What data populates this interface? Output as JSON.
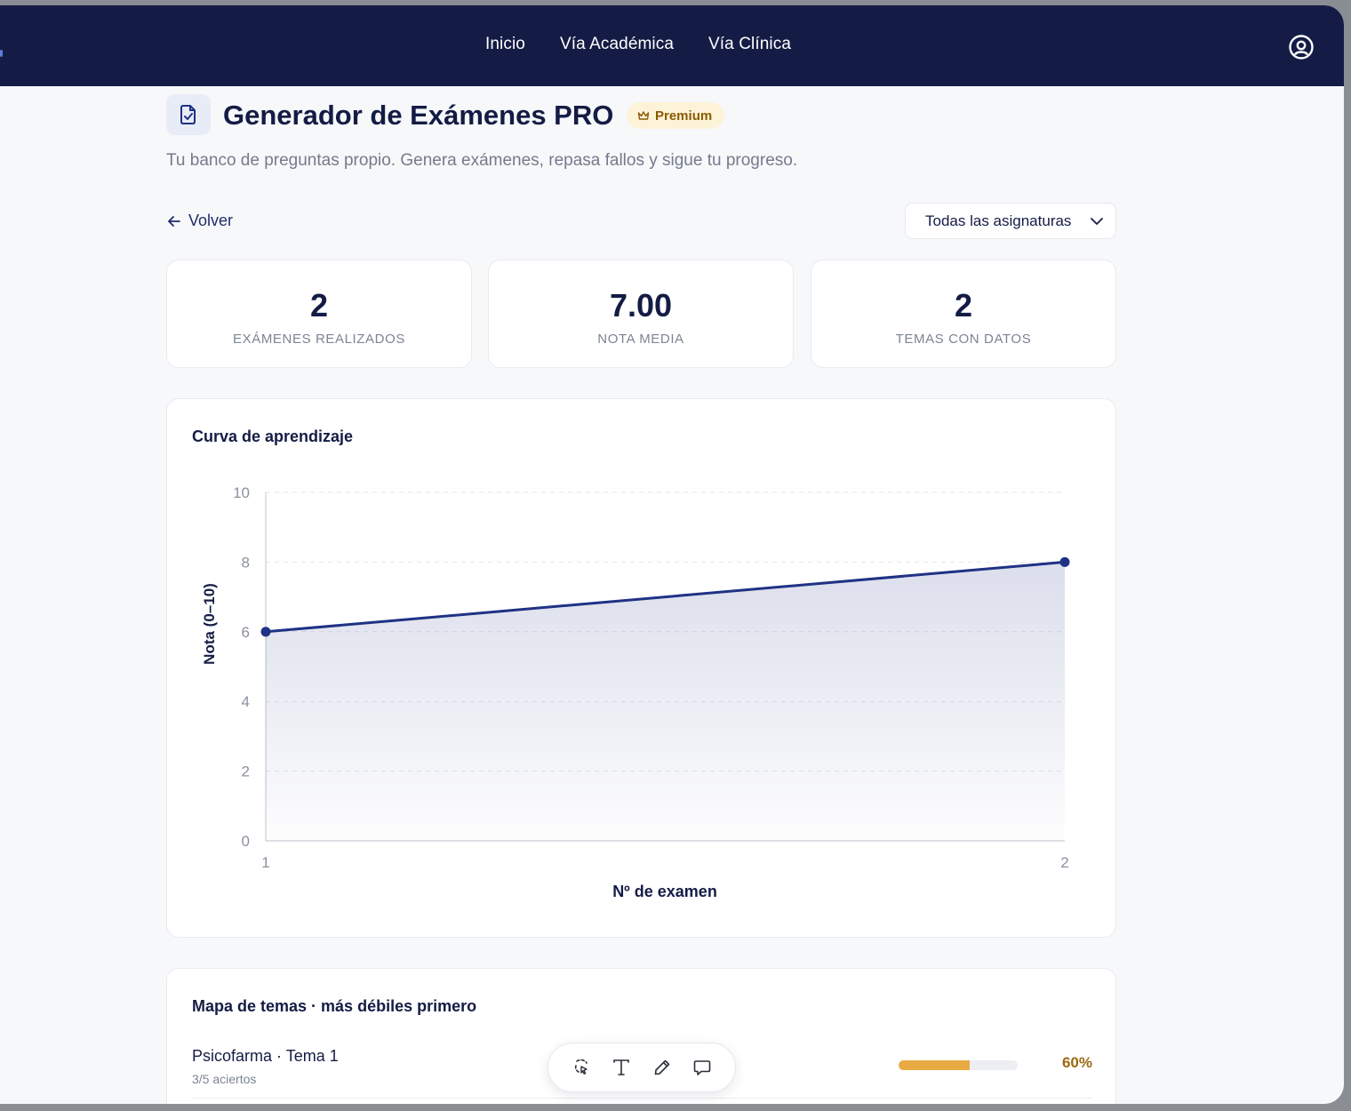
{
  "topnav": {
    "items": [
      {
        "label": "Inicio"
      },
      {
        "label": "Vía Académica"
      },
      {
        "label": "Vía Clínica"
      }
    ],
    "user_icon": "user-circle-icon"
  },
  "header": {
    "title": "Generador de Exámenes PRO",
    "badge": "Premium",
    "badge_icon": "crown-icon",
    "title_icon": "document-check-icon",
    "subtitle": "Tu banco de preguntas propio. Genera exámenes, repasa fallos y sigue tu progreso."
  },
  "controls": {
    "back_label": "Volver",
    "subject_select": "Todas las asignaturas"
  },
  "stats": [
    {
      "value": "2",
      "label": "Exámenes realizados"
    },
    {
      "value": "7.00",
      "label": "Nota media"
    },
    {
      "value": "2",
      "label": "Temas con datos"
    }
  ],
  "chart_data": {
    "type": "area",
    "title": "Curva de aprendizaje",
    "xlabel": "Nº de examen",
    "ylabel": "Nota (0–10)",
    "x": [
      1,
      2
    ],
    "series": [
      {
        "values": [
          6,
          8
        ]
      }
    ],
    "xlim": [
      1,
      2
    ],
    "ylim": [
      0,
      10
    ],
    "yticks": [
      0,
      2,
      4,
      6,
      8,
      10
    ],
    "xticks": [
      1,
      2
    ],
    "grid": true,
    "color": "#1f3285"
  },
  "topic_map": {
    "title": "Mapa de temas · más débiles primero",
    "rows": [
      {
        "name": "Psicofarma · Tema 1",
        "detail": "3/5 aciertos",
        "percent": 60,
        "percent_label": "60%"
      }
    ]
  },
  "toolbar": {
    "tools": [
      "lasso-select-icon",
      "text-icon",
      "pen-icon",
      "comment-icon"
    ]
  }
}
